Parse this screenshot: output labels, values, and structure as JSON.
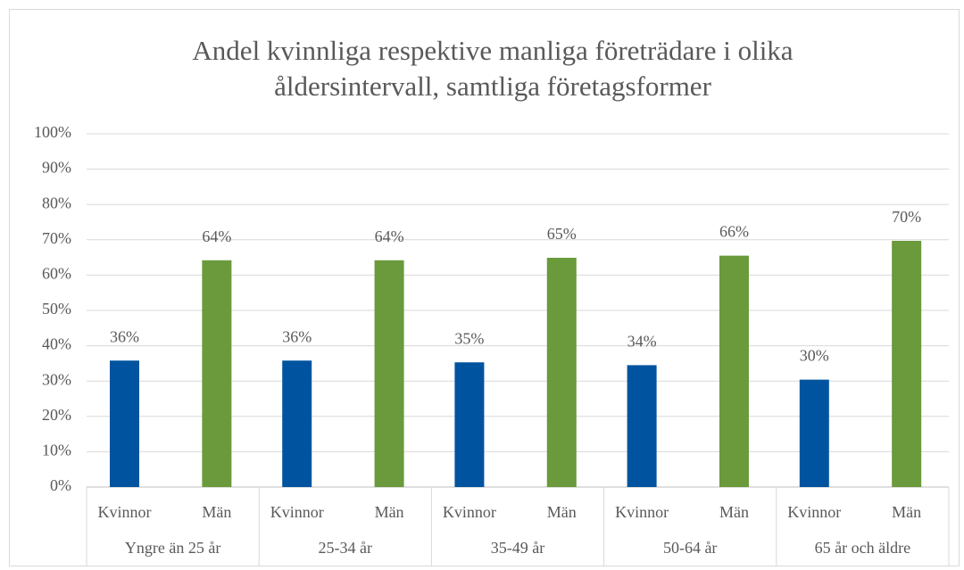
{
  "chart_data": {
    "type": "bar",
    "title": "Andel kvinnliga respektive manliga företrädare i olika åldersintervall, samtliga företagsformer",
    "title_lines": [
      "Andel kvinnliga respektive manliga företrädare i olika",
      "åldersintervall, samtliga företagsformer"
    ],
    "categories": [
      "Yngre än 25 år",
      "25-34 år",
      "35-49 år",
      "50-64 år",
      "65 år och äldre"
    ],
    "series": [
      {
        "name": "Kvinnor",
        "color": "#00549f",
        "values": [
          35.8,
          35.8,
          35.3,
          34.5,
          30.4
        ],
        "value_labels": [
          "36%",
          "36%",
          "35%",
          "34%",
          "30%"
        ]
      },
      {
        "name": "Män",
        "color": "#6a9a3b",
        "values": [
          64.2,
          64.2,
          64.9,
          65.5,
          69.7
        ],
        "value_labels": [
          "64%",
          "64%",
          "65%",
          "66%",
          "70%"
        ]
      }
    ],
    "ylim": [
      0,
      100
    ],
    "yticks": [
      {
        "value": 0,
        "label": "0%"
      },
      {
        "value": 10,
        "label": "10%"
      },
      {
        "value": 20,
        "label": "20%"
      },
      {
        "value": 30,
        "label": "30%"
      },
      {
        "value": 40,
        "label": "40%"
      },
      {
        "value": 50,
        "label": "50%"
      },
      {
        "value": 60,
        "label": "60%"
      },
      {
        "value": 70,
        "label": "70%"
      },
      {
        "value": 80,
        "label": "80%"
      },
      {
        "value": 90,
        "label": "90%"
      },
      {
        "value": 100,
        "label": "100%"
      }
    ],
    "grid": true
  }
}
